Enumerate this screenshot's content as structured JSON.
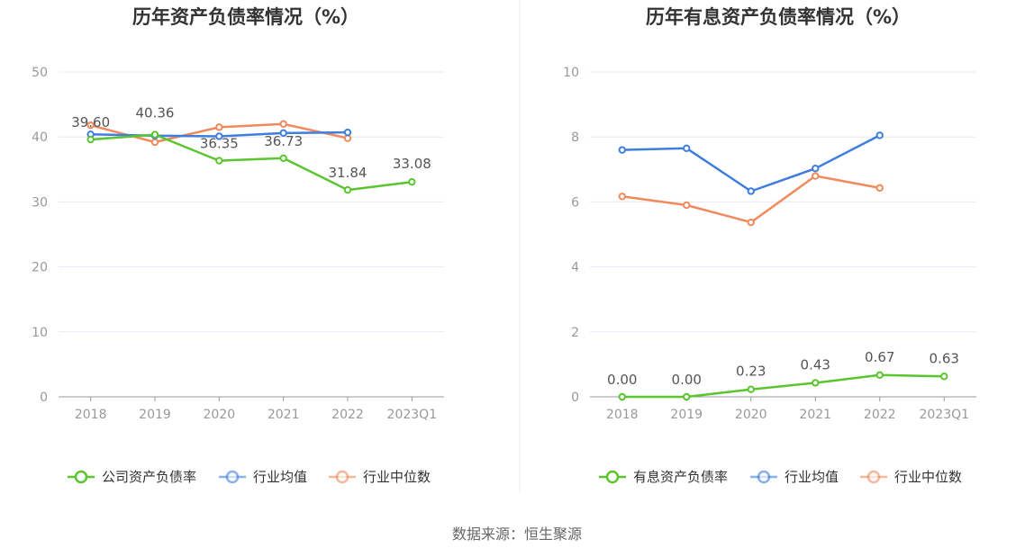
{
  "source": "数据来源：恒生聚源",
  "colors": {
    "company": "#5bc52f",
    "industry_avg": "#3f7ddf",
    "industry_median": "#f08a5d",
    "grid": "#e6e9f2",
    "axis": "#999999"
  },
  "chart_data": [
    {
      "type": "line",
      "title": "历年资产负债率情况（%）",
      "categories": [
        "2018",
        "2019",
        "2020",
        "2021",
        "2022",
        "2023Q1"
      ],
      "ylim": [
        0,
        50
      ],
      "yticks": [
        "0",
        "10",
        "20",
        "30",
        "40",
        "50"
      ],
      "grid": true,
      "legend_position": "bottom",
      "series": [
        {
          "name": "公司资产负债率",
          "color": "#5bc52f",
          "values": [
            39.6,
            40.36,
            36.35,
            36.73,
            31.84,
            33.08
          ],
          "labels": [
            "39.60",
            "40.36",
            "36.35",
            "36.73",
            "31.84",
            "33.08"
          ]
        },
        {
          "name": "行业均值",
          "color": "#3f7ddf",
          "values": [
            40.4,
            40.2,
            40.1,
            40.6,
            40.7,
            null
          ]
        },
        {
          "name": "行业中位数",
          "color": "#f08a5d",
          "values": [
            41.8,
            39.2,
            41.5,
            42.0,
            39.8,
            null
          ]
        }
      ]
    },
    {
      "type": "line",
      "title": "历年有息资产负债率情况（%）",
      "categories": [
        "2018",
        "2019",
        "2020",
        "2021",
        "2022",
        "2023Q1"
      ],
      "ylim": [
        0,
        10
      ],
      "yticks": [
        "0",
        "2",
        "4",
        "6",
        "8",
        "10"
      ],
      "grid": true,
      "legend_position": "bottom",
      "series": [
        {
          "name": "有息资产负债率",
          "color": "#5bc52f",
          "values": [
            0.0,
            0.0,
            0.23,
            0.43,
            0.67,
            0.63
          ],
          "labels": [
            "0.00",
            "0.00",
            "0.23",
            "0.43",
            "0.67",
            "0.63"
          ]
        },
        {
          "name": "行业均值",
          "color": "#3f7ddf",
          "values": [
            7.6,
            7.65,
            6.33,
            7.03,
            8.05,
            null
          ]
        },
        {
          "name": "行业中位数",
          "color": "#f08a5d",
          "values": [
            6.17,
            5.9,
            5.37,
            6.8,
            6.43,
            null
          ]
        }
      ]
    }
  ]
}
